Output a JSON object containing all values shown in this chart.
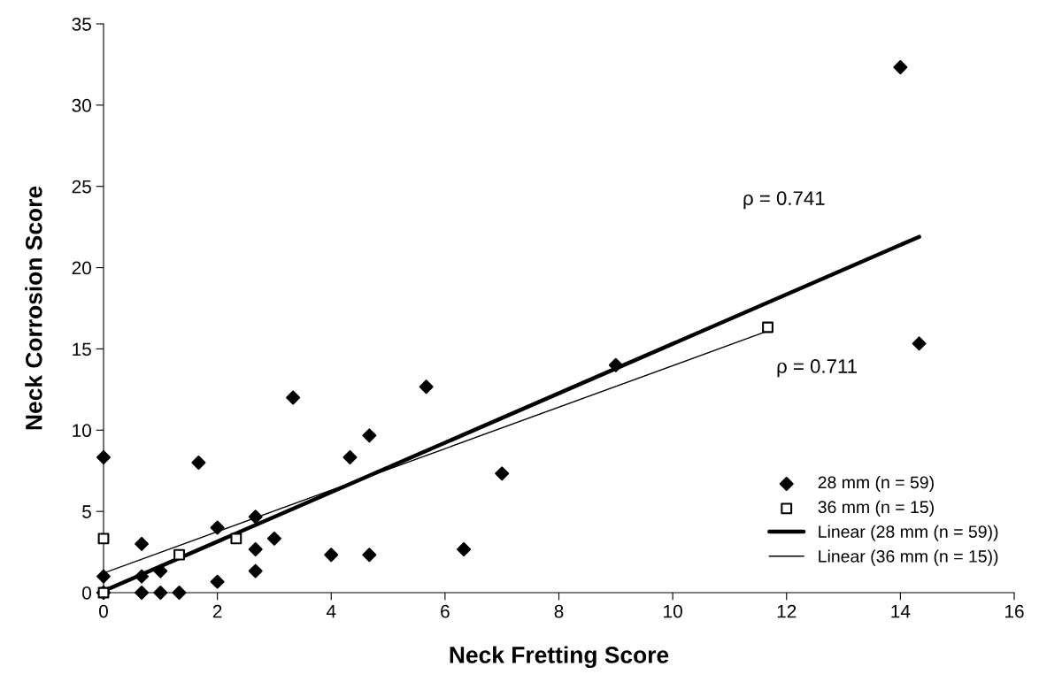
{
  "chart_data": {
    "type": "scatter",
    "xlabel": "Neck Fretting Score",
    "ylabel": "Neck Corrosion Score",
    "xlim": [
      0,
      16
    ],
    "xticks": [
      0,
      2,
      4,
      6,
      8,
      10,
      12,
      14,
      16
    ],
    "ylim": [
      0,
      35
    ],
    "yticks": [
      0,
      5,
      10,
      15,
      20,
      25,
      30,
      35
    ],
    "grid": false,
    "legend": "bottom right",
    "series": [
      {
        "name": "28 mm (n = 59)",
        "marker": "diamond",
        "color": "#000000",
        "x": [
          0,
          0,
          0,
          0.67,
          0.67,
          0.67,
          1,
          1,
          1.33,
          1.67,
          2,
          2,
          2.67,
          2.67,
          2.67,
          3,
          3.33,
          4,
          4.33,
          4.67,
          4.67,
          5.67,
          6.33,
          7,
          9,
          14,
          14.33
        ],
        "values": [
          8.33,
          1,
          0,
          3,
          1,
          0,
          1.33,
          0,
          0,
          8,
          4,
          0.67,
          4.67,
          2.67,
          1.33,
          3.33,
          12,
          2.33,
          8.33,
          9.67,
          2.33,
          12.67,
          2.67,
          7.33,
          14,
          32.33,
          15.33
        ]
      },
      {
        "name": "36 mm (n = 15)",
        "marker": "square",
        "color": "#000000",
        "x": [
          0,
          0,
          1.33,
          2.33,
          11.67
        ],
        "values": [
          3.33,
          0,
          2.33,
          3.33,
          16.33
        ]
      },
      {
        "name": "Linear (28 mm (n = 59))",
        "type": "line",
        "marker": "none",
        "color": "#000000",
        "x": [
          0,
          14.33
        ],
        "values": [
          0.1,
          21.9
        ]
      },
      {
        "name": "Linear (36 mm (n = 15))",
        "type": "line",
        "marker": "none",
        "color": "#000000",
        "x": [
          0,
          11.67
        ],
        "values": [
          1.2,
          16.1
        ]
      }
    ],
    "annotations": [
      "ρ = 0.741",
      "ρ = 0.711"
    ]
  }
}
